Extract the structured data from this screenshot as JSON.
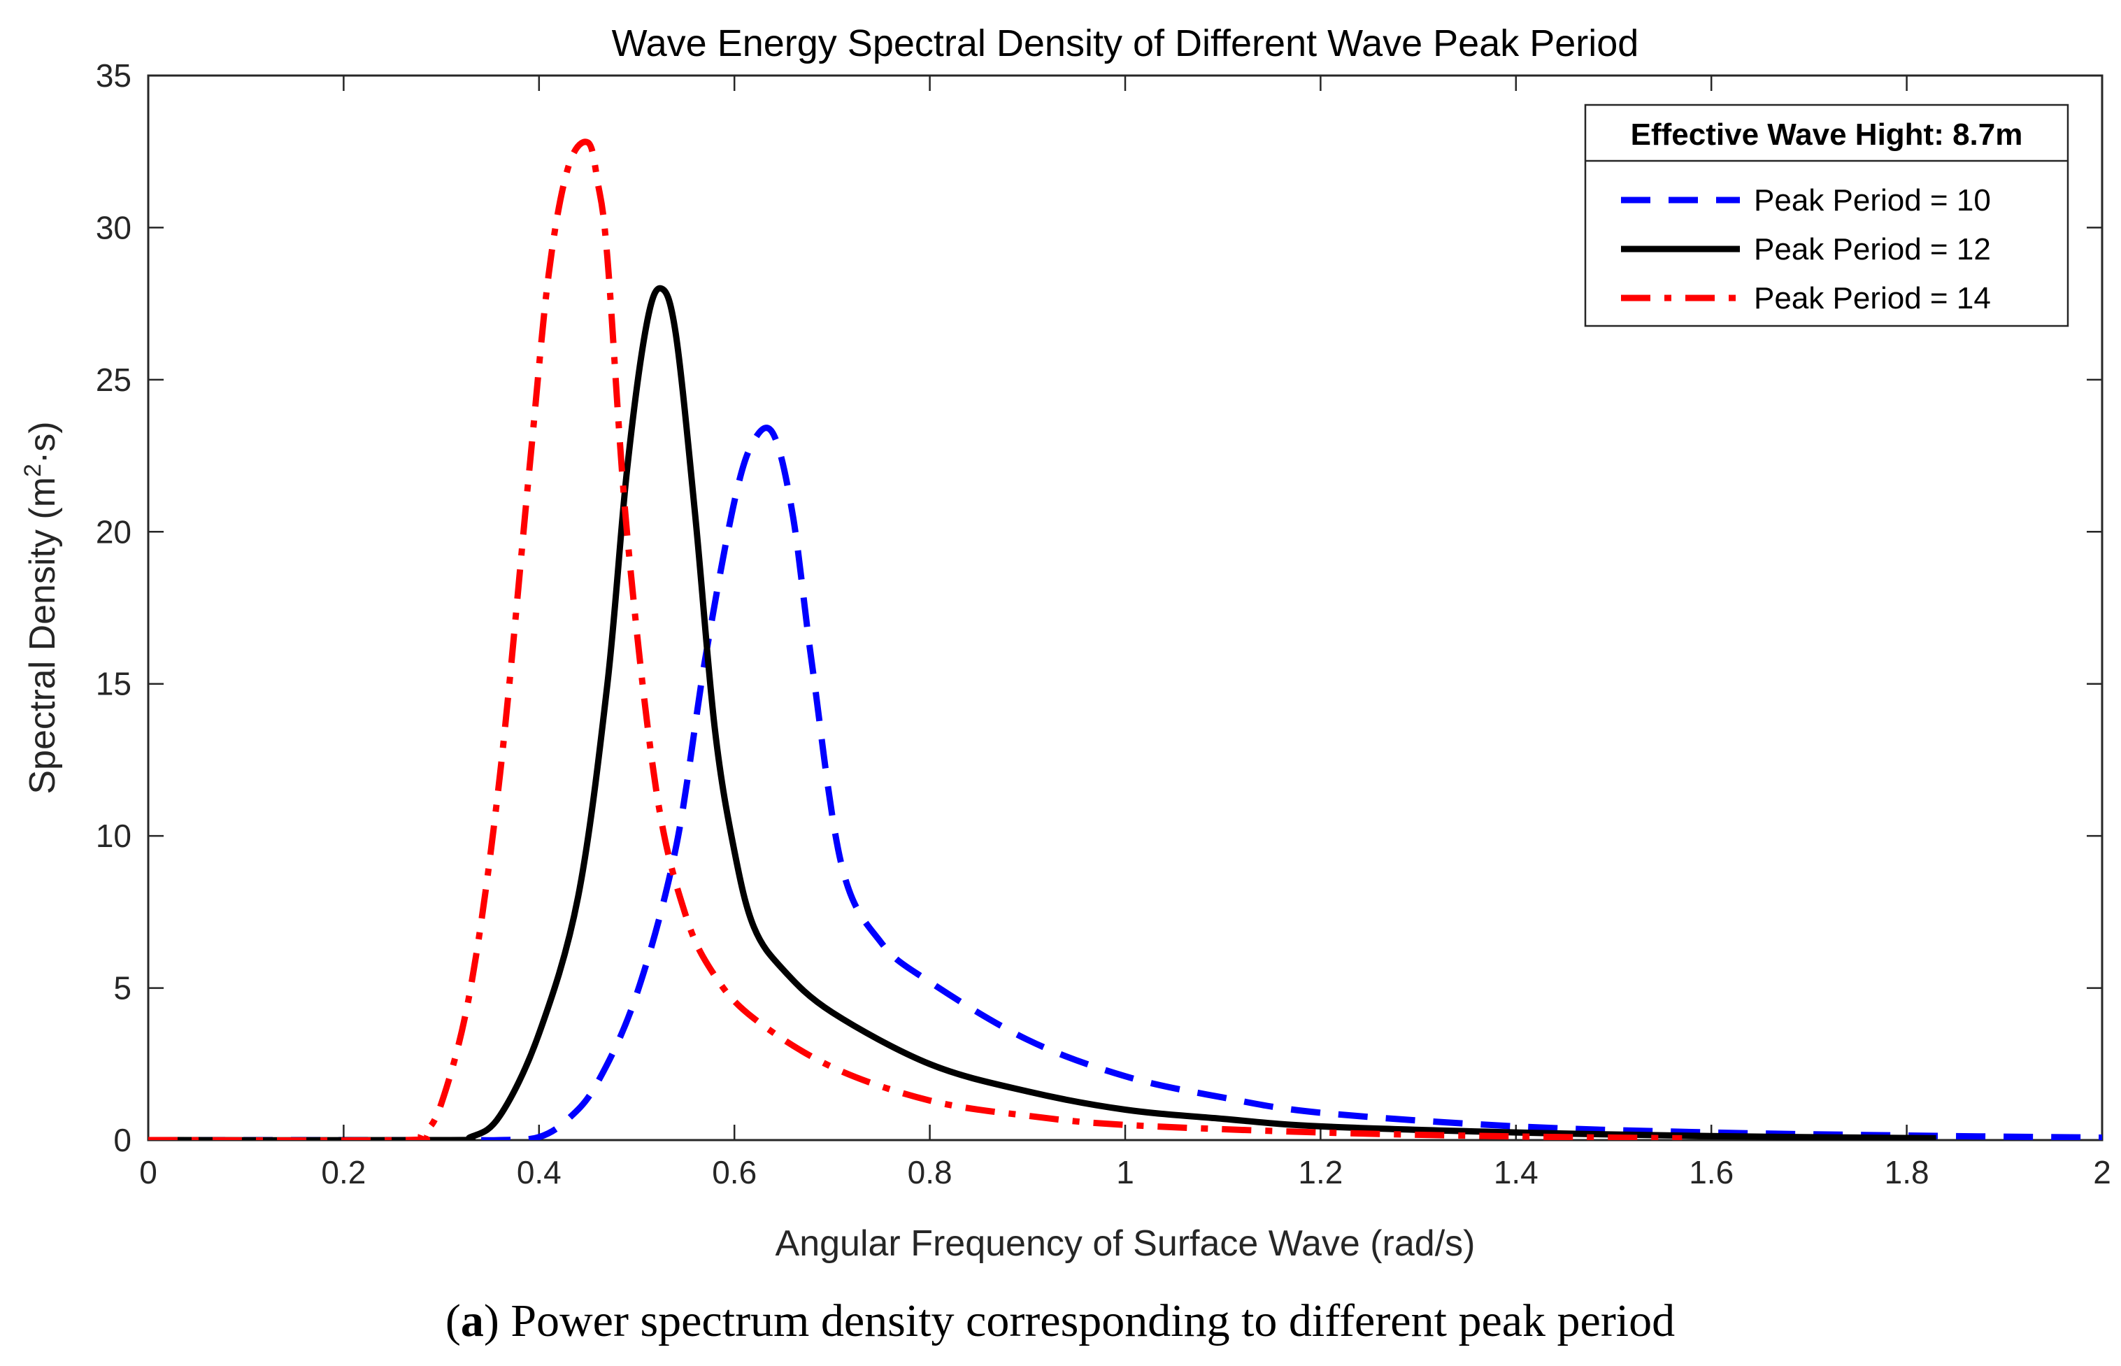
{
  "chart_data": {
    "type": "line",
    "title": "Wave Energy Spectral Density of Different Wave Peak Period",
    "xlabel": "Angular Frequency of Surface Wave (rad/s)",
    "ylabel_main": "Spectral Density (m",
    "ylabel_sup": "2",
    "ylabel_tail": "·s)",
    "xlim": [
      0,
      2
    ],
    "ylim": [
      0,
      35
    ],
    "xticks": [
      "0",
      "0.2",
      "0.4",
      "0.6",
      "0.8",
      "1",
      "1.2",
      "1.4",
      "1.6",
      "1.8",
      "2"
    ],
    "yticks": [
      "0",
      "5",
      "10",
      "15",
      "20",
      "25",
      "30",
      "35"
    ],
    "grid": false,
    "legend_placement": "top-right",
    "legend_title": "Effective Wave Hight: 8.7m",
    "series": [
      {
        "name": "Peak Period = 10",
        "color": "#0000ff",
        "style": "dashed",
        "x": [
          0.0,
          0.3,
          0.36,
          0.4,
          0.43,
          0.46,
          0.5,
          0.54,
          0.57,
          0.6,
          0.62,
          0.64,
          0.66,
          0.68,
          0.71,
          0.75,
          0.8,
          0.9,
          1.0,
          1.1,
          1.2,
          1.4,
          1.6,
          1.8,
          2.0
        ],
        "y": [
          0.0,
          0.0,
          0.0,
          0.1,
          0.7,
          1.9,
          4.8,
          9.6,
          15.8,
          21.0,
          23.0,
          23.2,
          20.5,
          15.5,
          9.0,
          6.5,
          5.2,
          3.3,
          2.1,
          1.4,
          0.9,
          0.45,
          0.25,
          0.15,
          0.08
        ]
      },
      {
        "name": "Peak Period = 12",
        "color": "#000000",
        "style": "solid",
        "x": [
          0.0,
          0.3,
          0.33,
          0.36,
          0.4,
          0.44,
          0.47,
          0.49,
          0.51,
          0.525,
          0.54,
          0.56,
          0.58,
          0.6,
          0.62,
          0.65,
          0.7,
          0.8,
          0.9,
          1.0,
          1.1,
          1.2,
          1.4,
          1.6,
          1.83
        ],
        "y": [
          0.0,
          0.0,
          0.1,
          0.8,
          3.5,
          8.0,
          15.0,
          22.0,
          26.8,
          28.0,
          26.5,
          20.5,
          13.5,
          9.5,
          7.0,
          5.6,
          4.2,
          2.5,
          1.6,
          1.0,
          0.7,
          0.45,
          0.25,
          0.13,
          0.06
        ]
      },
      {
        "name": "Peak Period = 14",
        "color": "#ff0000",
        "style": "dashdot",
        "x": [
          0.0,
          0.26,
          0.28,
          0.3,
          0.33,
          0.36,
          0.39,
          0.41,
          0.43,
          0.45,
          0.46,
          0.47,
          0.49,
          0.52,
          0.55,
          0.58,
          0.62,
          0.7,
          0.8,
          0.9,
          1.0,
          1.2,
          1.4,
          1.57
        ],
        "y": [
          0.0,
          0.0,
          0.2,
          1.2,
          5.0,
          12.0,
          22.0,
          28.5,
          32.0,
          32.8,
          31.5,
          29.0,
          20.0,
          11.5,
          7.4,
          5.4,
          4.0,
          2.4,
          1.3,
          0.8,
          0.5,
          0.25,
          0.12,
          0.06
        ]
      }
    ]
  },
  "caption": {
    "label_bold": "a",
    "text": "Power spectrum density corresponding to different peak period"
  }
}
